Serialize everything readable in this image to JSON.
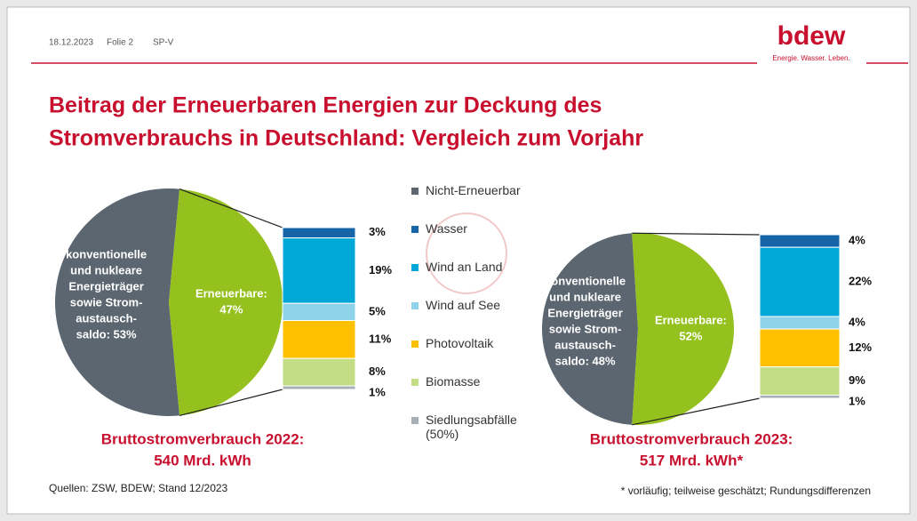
{
  "header": {
    "date": "18.12.2023",
    "slide": "Folie 2",
    "code": "SP-V",
    "logo": "bdew",
    "tagline": "Energie. Wasser. Leben."
  },
  "title": [
    "Beitrag der Erneuerbaren Energien zur Deckung des",
    "Stromverbrauchs in Deutschland: Vergleich zum Vorjahr"
  ],
  "legend": [
    {
      "name": "Nicht-Erneuerbar",
      "color": "#5b6670"
    },
    {
      "name": "Wasser",
      "color": "#1565a8"
    },
    {
      "name": "Wind an Land",
      "color": "#00a8d8"
    },
    {
      "name": "Wind auf See",
      "color": "#8fd3ea"
    },
    {
      "name": "Photovoltaik",
      "color": "#ffc000"
    },
    {
      "name": "Biomasse",
      "color": "#c3dc86"
    },
    {
      "name": "Siedlungsabfälle (50%)",
      "color": "#a7afb6"
    }
  ],
  "chart_data": [
    {
      "type": "pie",
      "pie": {
        "values": [
          53,
          47
        ],
        "colors": [
          "#5b6670",
          "#95c11f"
        ],
        "value_labels": [
          [
            "konventionelle",
            "und nukleare",
            "Energieträger",
            "sowie Strom-",
            "austausch-",
            "saldo: 53%"
          ],
          [
            "Erneuerbare:",
            "47%"
          ]
        ]
      },
      "series": [
        {
          "color": "#1565a8",
          "values": [
            3
          ],
          "value_labels": [
            "3%"
          ]
        },
        {
          "color": "#00a8d8",
          "values": [
            19
          ],
          "value_labels": [
            "19%"
          ]
        },
        {
          "color": "#8fd3ea",
          "values": [
            5
          ],
          "value_labels": [
            "5%"
          ]
        },
        {
          "color": "#ffc000",
          "values": [
            11
          ],
          "value_labels": [
            "11%"
          ]
        },
        {
          "color": "#c3dc86",
          "values": [
            8
          ],
          "value_labels": [
            "8%"
          ]
        },
        {
          "color": "#a7afb6",
          "values": [
            1
          ],
          "value_labels": [
            "1%"
          ]
        }
      ],
      "caption": [
        "Bruttostromverbrauch 2022:",
        "540 Mrd. kWh"
      ]
    },
    {
      "type": "pie",
      "pie": {
        "values": [
          48,
          52
        ],
        "colors": [
          "#5b6670",
          "#95c11f"
        ],
        "value_labels": [
          [
            "konventionelle",
            "und nukleare",
            "Energieträger",
            "sowie Strom-",
            "austausch-",
            "saldo: 48%"
          ],
          [
            "Erneuerbare:",
            "52%"
          ]
        ]
      },
      "series": [
        {
          "color": "#1565a8",
          "values": [
            4
          ],
          "value_labels": [
            "4%"
          ]
        },
        {
          "color": "#00a8d8",
          "values": [
            22
          ],
          "value_labels": [
            "22%"
          ]
        },
        {
          "color": "#8fd3ea",
          "values": [
            4
          ],
          "value_labels": [
            "4%"
          ]
        },
        {
          "color": "#ffc000",
          "values": [
            12
          ],
          "value_labels": [
            "12%"
          ]
        },
        {
          "color": "#c3dc86",
          "values": [
            9
          ],
          "value_labels": [
            "9%"
          ]
        },
        {
          "color": "#a7afb6",
          "values": [
            1
          ],
          "value_labels": [
            "1%"
          ]
        }
      ],
      "caption": [
        "Bruttostromverbrauch 2023:",
        "517 Mrd. kWh*"
      ]
    }
  ],
  "source": "Quellen: ZSW, BDEW; Stand 12/2023",
  "footnote": "* vorläufig; teilweise geschätzt; Rundungsdifferenzen"
}
